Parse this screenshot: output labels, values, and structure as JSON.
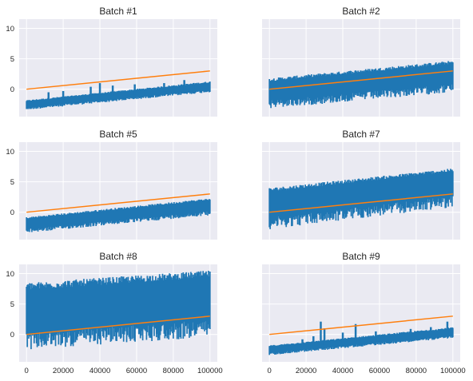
{
  "chart_data": {
    "type": "line",
    "shared_x_ticks": [
      0,
      20000,
      40000,
      60000,
      80000,
      100000
    ],
    "shared_y_ticks": [
      0,
      5,
      10
    ],
    "xlim": [
      -4000,
      104000
    ],
    "ylim": [
      -4.5,
      11.5
    ],
    "grid": true,
    "colors": {
      "signal": "#1f77b4",
      "trend": "#ff7f0e",
      "panel_bg": "#eaeaf2",
      "grid": "#ffffff"
    },
    "subplots": [
      {
        "title": "Batch #1",
        "trend_line": {
          "x": [
            0,
            100000
          ],
          "y": [
            0,
            3
          ]
        },
        "signal": {
          "x": [
            0,
            100000
          ],
          "center": [
            -2.5,
            0.3
          ],
          "band_low": [
            -3.4,
            -0.5
          ],
          "band_high": [
            -1.8,
            1.3
          ],
          "spikes": [
            [
              12000,
              -0.5
            ],
            [
              20000,
              -0.3
            ],
            [
              35000,
              0.4
            ],
            [
              40000,
              1.0
            ],
            [
              47000,
              0.6
            ],
            [
              59000,
              0.8
            ],
            [
              75000,
              1.0
            ],
            [
              86000,
              1.5
            ],
            [
              91000,
              1.0
            ]
          ]
        }
      },
      {
        "title": "Batch #2",
        "trend_line": {
          "x": [
            0,
            100000
          ],
          "y": [
            0,
            3
          ]
        },
        "signal": {
          "x": [
            0,
            100000
          ],
          "center": [
            -0.2,
            2.5
          ],
          "band_low": [
            -3.2,
            -0.5
          ],
          "band_high": [
            1.8,
            4.7
          ],
          "spikes": []
        }
      },
      {
        "title": "Batch #5",
        "trend_line": {
          "x": [
            0,
            100000
          ],
          "y": [
            0,
            3
          ]
        },
        "signal": {
          "x": [
            0,
            100000
          ],
          "center": [
            -2.0,
            1.0
          ],
          "band_low": [
            -3.4,
            -0.5
          ],
          "band_high": [
            -0.8,
            2.3
          ],
          "spikes": []
        }
      },
      {
        "title": "Batch #7",
        "trend_line": {
          "x": [
            0,
            100000
          ],
          "y": [
            0,
            3
          ]
        },
        "signal": {
          "x": [
            0,
            100000
          ],
          "center": [
            1.5,
            5.0
          ],
          "band_low": [
            -2.8,
            0.8
          ],
          "band_high": [
            4.0,
            7.2
          ],
          "spikes": []
        }
      },
      {
        "title": "Batch #8",
        "trend_line": {
          "x": [
            0,
            100000
          ],
          "y": [
            0,
            3
          ]
        },
        "signal": {
          "x": [
            0,
            100000
          ],
          "center": [
            3.5,
            6.0
          ],
          "band_low": [
            -2.5,
            -0.5
          ],
          "band_high": [
            8.5,
            10.5
          ],
          "spikes": []
        }
      },
      {
        "title": "Batch #9",
        "trend_line": {
          "x": [
            0,
            100000
          ],
          "y": [
            0,
            3
          ]
        },
        "signal": {
          "x": [
            0,
            100000
          ],
          "center": [
            -2.5,
            0.2
          ],
          "band_low": [
            -3.4,
            -0.6
          ],
          "band_high": [
            -1.8,
            1.2
          ],
          "spikes": [
            [
              18000,
              -0.8
            ],
            [
              24000,
              -0.3
            ],
            [
              28000,
              2.1
            ],
            [
              30000,
              1.0
            ],
            [
              40000,
              0.3
            ],
            [
              47000,
              1.7
            ],
            [
              58000,
              0.5
            ],
            [
              77000,
              0.9
            ],
            [
              88000,
              1.2
            ],
            [
              97000,
              2.1
            ]
          ]
        }
      }
    ]
  }
}
